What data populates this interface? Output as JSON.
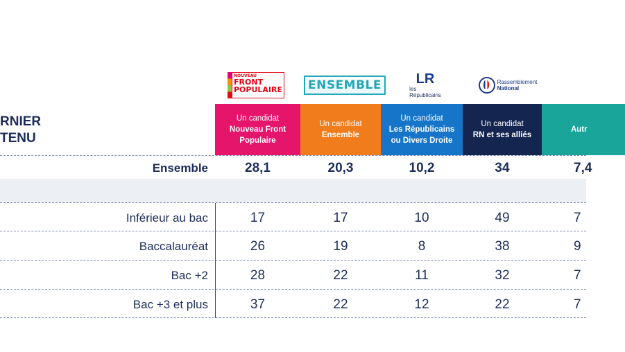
{
  "left_header": {
    "line1": "RNIER",
    "line2": "TENU"
  },
  "logos": {
    "nfp_small": "NOUVEAU",
    "nfp_line1": "FRONT",
    "nfp_line2": "POPULAIRE",
    "ens": "ENSEMBLE",
    "lr_mark": "LR",
    "lr_line1": "les",
    "lr_line2": "Républicains",
    "rn_line1": "Rassemblement",
    "rn_line2": "National"
  },
  "columns": [
    {
      "line1": "Un candidat",
      "line2": "Nouveau Front",
      "line3": "Populaire",
      "color": "#e5156b"
    },
    {
      "line1": "Un candidat",
      "line2": "Ensemble",
      "line3": "",
      "color": "#f07c1c"
    },
    {
      "line1": "Un candidat",
      "line2": "Les Républicains",
      "line3": "ou Divers Droite",
      "color": "#1675c8"
    },
    {
      "line1": "Un candidat",
      "line2": "RN et ses alliés",
      "line3": "",
      "color": "#142550"
    },
    {
      "line1": "",
      "line2": "Autr",
      "line3": "",
      "color": "#1aa59a"
    }
  ],
  "total_row": {
    "label": "Ensemble",
    "values": [
      "28,1",
      "20,3",
      "10,2",
      "34",
      "7,4"
    ]
  },
  "rows": [
    {
      "label": "Inférieur au bac",
      "values": [
        "17",
        "17",
        "10",
        "49",
        "7"
      ]
    },
    {
      "label": "Baccalauréat",
      "values": [
        "26",
        "19",
        "8",
        "38",
        "9"
      ]
    },
    {
      "label": "Bac +2",
      "values": [
        "28",
        "22",
        "11",
        "32",
        "7"
      ]
    },
    {
      "label": "Bac +3 et plus",
      "values": [
        "37",
        "22",
        "12",
        "22",
        "7"
      ]
    }
  ]
}
